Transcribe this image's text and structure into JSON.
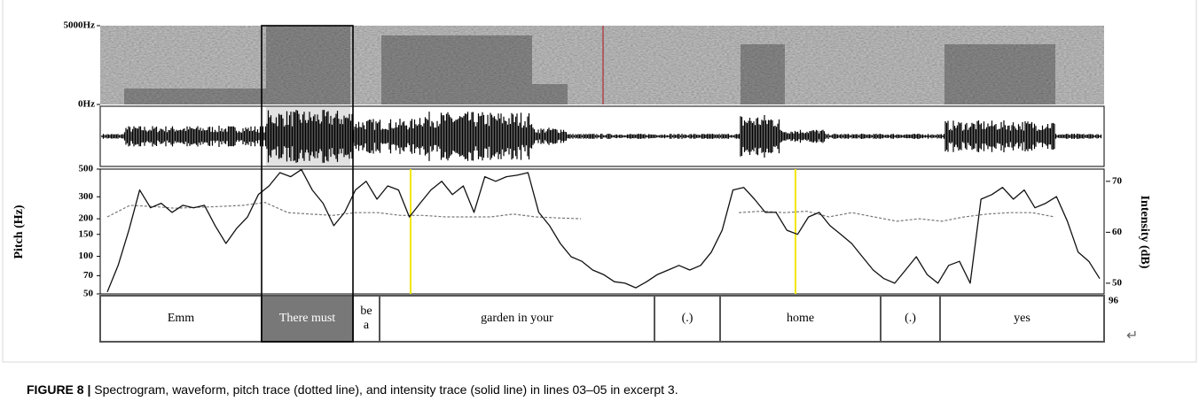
{
  "spectrogram": {
    "yticks": [
      {
        "value": 5000,
        "label": "5000Hz"
      },
      {
        "value": 0,
        "label": "0Hz"
      }
    ]
  },
  "chart_data": {
    "type": "line",
    "ylabel": "Pitch (Hz)",
    "y2label": "Intensity (dB)",
    "ylim": [
      50,
      500
    ],
    "ylog": true,
    "yticks": [
      50,
      70,
      100,
      150,
      200,
      300,
      500
    ],
    "y2lim": [
      47.9,
      72.4
    ],
    "y2ticks": [
      50,
      60,
      70
    ],
    "series": [
      {
        "color": "#777777",
        "line_style": "dotted",
        "values": [
          207,
          256,
          251,
          243,
          247,
          251,
          256,
          270,
          224,
          218,
          213,
          224,
          224,
          213,
          213,
          207,
          207,
          207,
          218,
          207,
          203,
          200,
          null,
          null,
          null,
          null,
          null,
          null,
          224,
          230,
          224,
          230,
          207,
          224,
          207,
          191,
          200,
          191,
          207,
          218,
          224,
          224,
          207,
          null,
          null
        ]
      },
      {
        "color": "#111111",
        "line_style": "solid",
        "axis": "y2",
        "values": [
          48.3,
          53.5,
          60.4,
          68.3,
          64.8,
          65.7,
          63.9,
          65.3,
          64.8,
          65.3,
          61.3,
          57.8,
          60.8,
          63.0,
          67.4,
          69.1,
          71.7,
          70.9,
          72.3,
          68.3,
          65.7,
          61.3,
          63.9,
          68.3,
          70.0,
          66.5,
          69.1,
          68.3,
          63.0,
          65.7,
          68.3,
          70.0,
          67.4,
          69.1,
          63.9,
          70.9,
          70.0,
          70.9,
          71.2,
          71.7,
          63.9,
          61.3,
          57.8,
          55.2,
          54.3,
          52.6,
          51.7,
          50.3,
          50.0,
          49.1,
          50.3,
          51.7,
          52.6,
          53.5,
          52.6,
          53.5,
          56.1,
          60.4,
          68.3,
          68.8,
          66.5,
          63.9,
          63.9,
          60.4,
          59.6,
          63.0,
          63.9,
          61.3,
          59.6,
          57.8,
          55.2,
          52.6,
          50.9,
          50.0,
          52.6,
          55.2,
          51.7,
          50.0,
          53.5,
          54.3,
          50.0,
          66.5,
          67.4,
          68.8,
          66.5,
          68.3,
          64.8,
          65.7,
          67.0,
          62.2,
          56.1,
          54.3,
          50.9
        ]
      }
    ]
  },
  "tiers": [
    {
      "lines": [
        "Emm"
      ]
    },
    {
      "lines": [
        "There must"
      ]
    },
    {
      "lines": [
        "be",
        "a"
      ]
    },
    {
      "lines": [
        "garden in your"
      ]
    },
    {
      "lines": [
        "(.)"
      ]
    },
    {
      "lines": [
        "home"
      ]
    },
    {
      "lines": [
        "(.)"
      ]
    },
    {
      "lines": [
        "yes"
      ]
    }
  ],
  "tier_note": "96",
  "caption": {
    "label": "FIGURE 8 |",
    "text": " Spectrogram, waveform, pitch trace (dotted line), and intensity trace (solid line) in lines 03–05 in excerpt 3."
  }
}
